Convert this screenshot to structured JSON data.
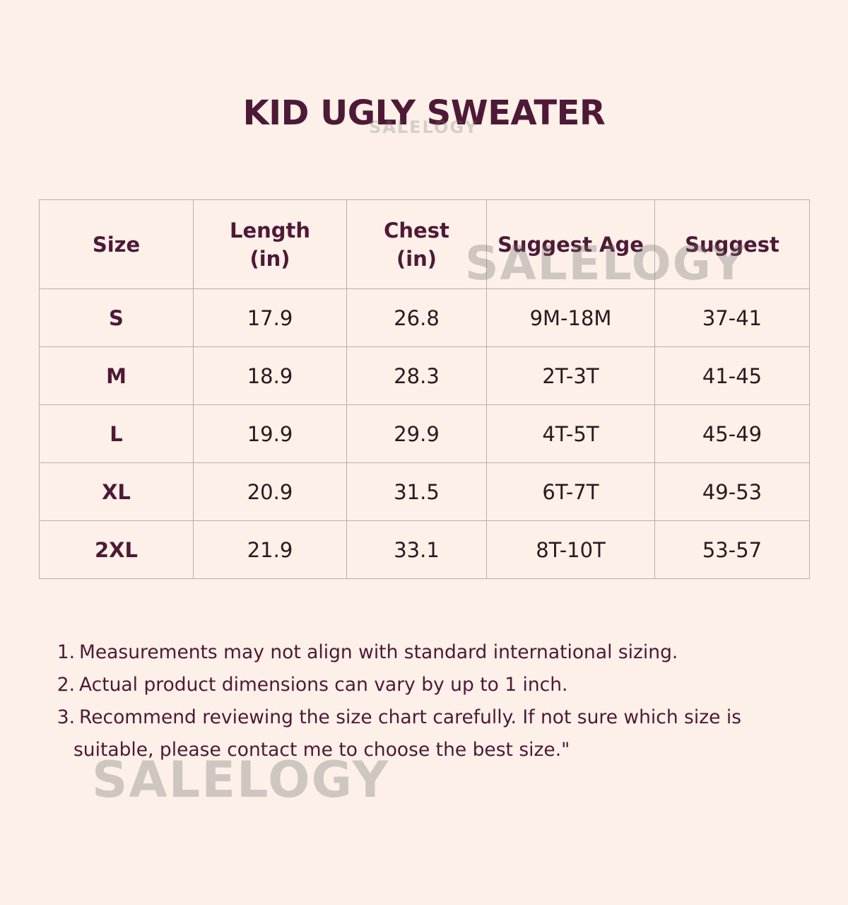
{
  "title": "KID UGLY SWEATER",
  "watermark": "SALELOGY",
  "colors": {
    "background": "#fcf0e8",
    "accent": "#4e1936",
    "border": "#b9b0ab",
    "cell_text": "#2a1a1f"
  },
  "table": {
    "headers": [
      {
        "line1": "Size",
        "line2": ""
      },
      {
        "line1": "Length",
        "line2": "(in)"
      },
      {
        "line1": "Chest",
        "line2": "(in)"
      },
      {
        "line1": "Suggest Age",
        "line2": ""
      },
      {
        "line1": "Suggest",
        "line2": ""
      }
    ],
    "rows": [
      [
        "S",
        "17.9",
        "26.8",
        "9M-18M",
        "37-41"
      ],
      [
        "M",
        "18.9",
        "28.3",
        "2T-3T",
        "41-45"
      ],
      [
        "L",
        "19.9",
        "29.9",
        "4T-5T",
        "45-49"
      ],
      [
        "XL",
        "20.9",
        "31.5",
        "6T-7T",
        "49-53"
      ],
      [
        "2XL",
        "21.9",
        "33.1",
        "8T-10T",
        "53-57"
      ]
    ]
  },
  "notes": [
    {
      "num": "1.",
      "text": "Measurements may not align with standard international sizing."
    },
    {
      "num": "2.",
      "text": "Actual product dimensions can vary by up to 1 inch."
    },
    {
      "num": "3.",
      "text": "Recommend reviewing the size chart carefully. If not sure which size is suitable, please contact me to choose the best size.\""
    }
  ]
}
